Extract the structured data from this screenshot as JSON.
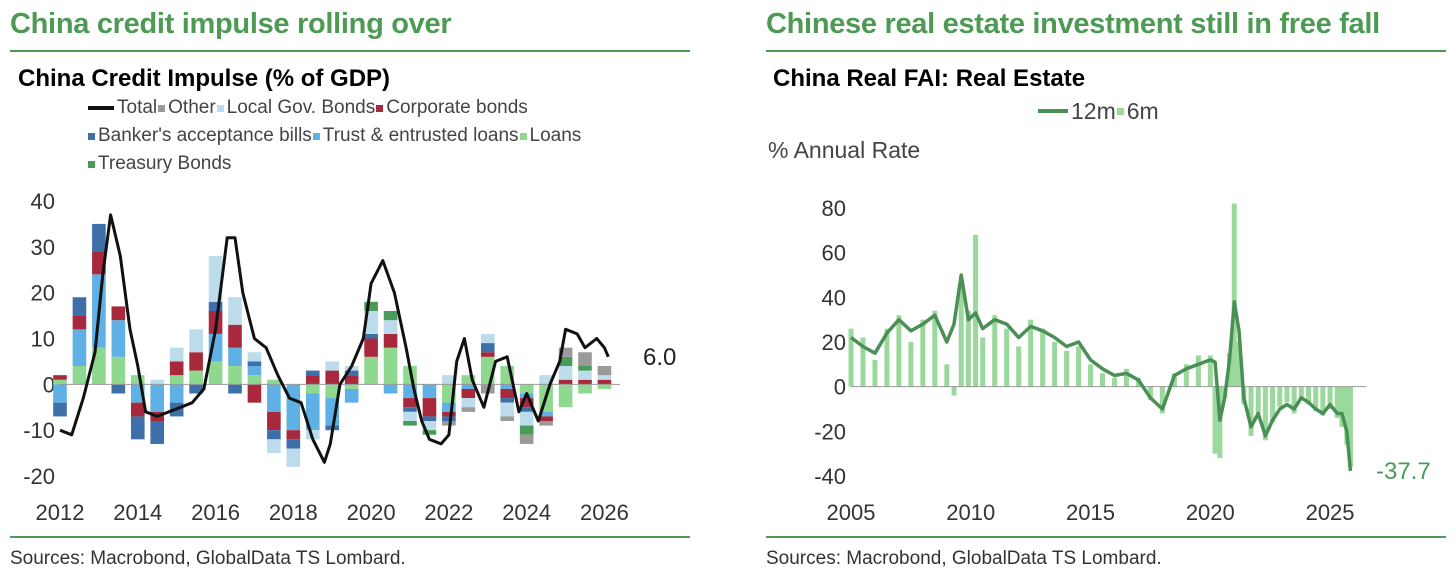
{
  "left": {
    "headline": "China credit impulse rolling over",
    "source": "Sources: Macrobond, GlobalData TS Lombard.",
    "legend": [
      {
        "label": "Total",
        "color": "#111111",
        "kind": "line"
      },
      {
        "label": "Other",
        "color": "#9a9a9a",
        "kind": "box"
      },
      {
        "label": "Local Gov. Bonds",
        "color": "#bcdcec",
        "kind": "box"
      },
      {
        "label": "Corporate bonds",
        "color": "#a8283c",
        "kind": "box"
      },
      {
        "label": "Banker's acceptance bills",
        "color": "#3d6fa8",
        "kind": "box"
      },
      {
        "label": "Trust & entrusted loans",
        "color": "#5eb0e5",
        "kind": "box"
      },
      {
        "label": "Loans",
        "color": "#8fd88f",
        "kind": "box"
      },
      {
        "label": "Treasury Bonds",
        "color": "#4a9a5a",
        "kind": "box"
      }
    ],
    "chart_data": {
      "type": "bar",
      "stacked": true,
      "title": "China Credit Impulse (% of GDP)",
      "xlabel": "",
      "ylabel": "",
      "xlim": [
        2012,
        2026.4
      ],
      "ylim": [
        -20,
        40
      ],
      "yticks": [
        40,
        30,
        20,
        10,
        0,
        -10,
        -20
      ],
      "ytick_labels": [
        "40",
        "30",
        "20",
        "10",
        "0",
        "-10",
        "-20"
      ],
      "xticks": [
        2012,
        2014,
        2016,
        2018,
        2020,
        2022,
        2024,
        2026
      ],
      "xtick_labels": [
        "2012",
        "2014",
        "2016",
        "2018",
        "2020",
        "2022",
        "2024",
        "2026"
      ],
      "last_value_label": "6.0",
      "series": [
        {
          "name": "Loans",
          "color": "#8fd88f",
          "x": [
            2012.0,
            2012.5,
            2013.0,
            2013.5,
            2014.0,
            2014.5,
            2015.0,
            2015.5,
            2016.0,
            2016.5,
            2017.0,
            2017.5,
            2018.0,
            2018.5,
            2019.0,
            2019.5,
            2020.0,
            2020.5,
            2021.0,
            2021.5,
            2022.0,
            2022.5,
            2023.0,
            2023.5,
            2024.0,
            2024.5,
            2025.0,
            2025.5,
            2026.0
          ],
          "values": [
            1,
            4,
            8,
            6,
            2,
            0,
            2,
            3,
            5,
            4,
            2,
            1,
            0,
            -2,
            -3,
            -1,
            6,
            8,
            4,
            0,
            -4,
            2,
            6,
            4,
            -2,
            -6,
            -5,
            -2,
            -1
          ]
        },
        {
          "name": "Trust & entrusted loans",
          "color": "#5eb0e5",
          "x": [
            2012.0,
            2012.5,
            2013.0,
            2013.5,
            2014.0,
            2014.5,
            2015.0,
            2015.5,
            2016.0,
            2016.5,
            2017.0,
            2017.5,
            2018.0,
            2018.5,
            2019.0,
            2019.5,
            2020.0,
            2020.5,
            2021.0,
            2021.5,
            2022.0,
            2022.5,
            2023.0,
            2023.5,
            2024.0,
            2024.5,
            2025.0,
            2025.5,
            2026.0
          ],
          "values": [
            -4,
            8,
            16,
            8,
            -4,
            -6,
            -4,
            0,
            6,
            4,
            2,
            -6,
            -10,
            -8,
            -6,
            -3,
            0,
            -2,
            -3,
            -3,
            -2,
            -1,
            0,
            -1,
            -1,
            -1,
            0,
            0,
            0
          ]
        },
        {
          "name": "Corporate bonds",
          "color": "#a8283c",
          "x": [
            2012.0,
            2012.5,
            2013.0,
            2013.5,
            2014.0,
            2014.5,
            2015.0,
            2015.5,
            2016.0,
            2016.5,
            2017.0,
            2017.5,
            2018.0,
            2018.5,
            2019.0,
            2019.5,
            2020.0,
            2020.5,
            2021.0,
            2021.5,
            2022.0,
            2022.5,
            2023.0,
            2023.5,
            2024.0,
            2024.5,
            2025.0,
            2025.5,
            2026.0
          ],
          "values": [
            1,
            3,
            5,
            3,
            -3,
            -2,
            3,
            4,
            5,
            5,
            -4,
            -4,
            -2,
            2,
            3,
            2,
            4,
            3,
            -2,
            -4,
            -1,
            -2,
            1,
            -2,
            -2,
            -1,
            1,
            1,
            1
          ]
        },
        {
          "name": "Banker's acceptance bills",
          "color": "#3d6fa8",
          "x": [
            2012.0,
            2012.5,
            2013.0,
            2013.5,
            2014.0,
            2014.5,
            2015.0,
            2015.5,
            2016.0,
            2016.5,
            2017.0,
            2017.5,
            2018.0,
            2018.5,
            2019.0,
            2019.5,
            2020.0,
            2020.5,
            2021.0,
            2021.5,
            2022.0,
            2022.5,
            2023.0,
            2023.5,
            2024.0,
            2024.5,
            2025.0,
            2025.5,
            2026.0
          ],
          "values": [
            -3,
            4,
            6,
            -2,
            -5,
            -5,
            -3,
            -2,
            2,
            -2,
            1,
            -2,
            -2,
            1,
            -1,
            1,
            1,
            0,
            -1,
            -1,
            -1,
            0,
            2,
            -1,
            -1,
            0,
            0,
            0,
            0
          ]
        },
        {
          "name": "Local Gov. Bonds",
          "color": "#bcdcec",
          "x": [
            2012.0,
            2012.5,
            2013.0,
            2013.5,
            2014.0,
            2014.5,
            2015.0,
            2015.5,
            2016.0,
            2016.5,
            2017.0,
            2017.5,
            2018.0,
            2018.5,
            2019.0,
            2019.5,
            2020.0,
            2020.5,
            2021.0,
            2021.5,
            2022.0,
            2022.5,
            2023.0,
            2023.5,
            2024.0,
            2024.5,
            2025.0,
            2025.5,
            2026.0
          ],
          "values": [
            0,
            0,
            0,
            0,
            0,
            1,
            3,
            5,
            10,
            6,
            2,
            -3,
            -4,
            -2,
            2,
            1,
            5,
            3,
            -2,
            -2,
            2,
            -2,
            2,
            -3,
            -3,
            2,
            3,
            2,
            1
          ]
        },
        {
          "name": "Treasury Bonds",
          "color": "#4a9a5a",
          "x": [
            2012.0,
            2012.5,
            2013.0,
            2013.5,
            2014.0,
            2014.5,
            2015.0,
            2015.5,
            2016.0,
            2016.5,
            2017.0,
            2017.5,
            2018.0,
            2018.5,
            2019.0,
            2019.5,
            2020.0,
            2020.5,
            2021.0,
            2021.5,
            2022.0,
            2022.5,
            2023.0,
            2023.5,
            2024.0,
            2024.5,
            2025.0,
            2025.5,
            2026.0
          ],
          "values": [
            0,
            0,
            0,
            0,
            0,
            0,
            0,
            0,
            0,
            0,
            0,
            0,
            0,
            0,
            0,
            0,
            2,
            2,
            -1,
            -1,
            0,
            0,
            0,
            0,
            -2,
            0,
            2,
            1,
            0
          ]
        },
        {
          "name": "Other",
          "color": "#9a9a9a",
          "x": [
            2012.0,
            2012.5,
            2013.0,
            2013.5,
            2014.0,
            2014.5,
            2015.0,
            2015.5,
            2016.0,
            2016.5,
            2017.0,
            2017.5,
            2018.0,
            2018.5,
            2019.0,
            2019.5,
            2020.0,
            2020.5,
            2021.0,
            2021.5,
            2022.0,
            2022.5,
            2023.0,
            2023.5,
            2024.0,
            2024.5,
            2025.0,
            2025.5,
            2026.0
          ],
          "values": [
            0,
            0,
            0,
            0,
            0,
            0,
            0,
            0,
            0,
            0,
            0,
            0,
            0,
            0,
            0,
            0,
            0,
            0,
            0,
            0,
            -1,
            -1,
            -2,
            -1,
            -2,
            -1,
            2,
            3,
            2
          ]
        },
        {
          "name": "Total",
          "color": "#111111",
          "kind": "line",
          "x": [
            2012.0,
            2012.3,
            2012.6,
            2012.9,
            2013.1,
            2013.3,
            2013.55,
            2013.8,
            2014.0,
            2014.2,
            2014.5,
            2014.8,
            2015.1,
            2015.4,
            2015.7,
            2016.0,
            2016.3,
            2016.5,
            2016.7,
            2017.0,
            2017.3,
            2017.6,
            2017.9,
            2018.2,
            2018.5,
            2018.8,
            2018.95,
            2019.2,
            2019.5,
            2019.8,
            2020.0,
            2020.3,
            2020.6,
            2020.9,
            2021.1,
            2021.3,
            2021.5,
            2021.8,
            2022.0,
            2022.2,
            2022.4,
            2022.6,
            2022.9,
            2023.2,
            2023.5,
            2023.8,
            2024.0,
            2024.3,
            2024.6,
            2024.85,
            2025.0,
            2025.3,
            2025.5,
            2025.8,
            2026.0,
            2026.1
          ],
          "values": [
            -10,
            -11,
            -3,
            7,
            24,
            37,
            28,
            12,
            4,
            -6,
            -7,
            -6,
            -5,
            -4,
            -1,
            12,
            32,
            32,
            20,
            10,
            8,
            2,
            -3,
            -4,
            -12,
            -17,
            -13,
            0,
            4,
            10,
            22,
            27,
            20,
            8,
            -1,
            -8,
            -12,
            -13,
            -11,
            5,
            10,
            1,
            -5,
            5,
            6,
            -6,
            -2,
            -8,
            0,
            5,
            12,
            11,
            8,
            10,
            8,
            6
          ]
        }
      ]
    }
  },
  "right": {
    "headline": "Chinese real estate investment still in free fall",
    "source": "Sources: Macrobond, GlobalData TS Lombard.",
    "unit_label": "% Annual Rate",
    "legend": [
      {
        "label": "12m",
        "color": "#4a8f55",
        "kind": "line"
      },
      {
        "label": "6m",
        "color": "#9bd89b",
        "kind": "box"
      }
    ],
    "chart_data": {
      "type": "line",
      "title": "China Real FAI: Real Estate",
      "xlabel": "",
      "ylabel": "% Annual Rate",
      "xlim": [
        2005,
        2026.5
      ],
      "ylim": [
        -40,
        80
      ],
      "yticks": [
        80,
        60,
        40,
        20,
        0,
        -20,
        -40
      ],
      "ytick_labels": [
        "80",
        "60",
        "40",
        "20",
        "0",
        "-20",
        "-40"
      ],
      "xticks": [
        2005,
        2010,
        2015,
        2020,
        2025
      ],
      "xtick_labels": [
        "2005",
        "2010",
        "2015",
        "2020",
        "2025"
      ],
      "last_value_label": "-37.7",
      "series": [
        {
          "name": "12m",
          "kind": "line",
          "color": "#4a8f55",
          "x": [
            2005.0,
            2005.5,
            2006.0,
            2006.5,
            2007.0,
            2007.5,
            2008.0,
            2008.5,
            2009.0,
            2009.3,
            2009.6,
            2009.9,
            2010.2,
            2010.5,
            2011.0,
            2011.5,
            2012.0,
            2012.5,
            2013.0,
            2013.5,
            2014.0,
            2014.5,
            2015.0,
            2015.5,
            2016.0,
            2016.5,
            2017.0,
            2017.5,
            2018.0,
            2018.5,
            2019.0,
            2019.5,
            2020.0,
            2020.2,
            2020.4,
            2020.6,
            2020.8,
            2021.0,
            2021.2,
            2021.4,
            2021.7,
            2022.0,
            2022.3,
            2022.6,
            2022.9,
            2023.2,
            2023.5,
            2023.8,
            2024.1,
            2024.4,
            2024.7,
            2025.0,
            2025.3,
            2025.5,
            2025.7,
            2025.85
          ],
          "values": [
            22,
            18,
            15,
            24,
            30,
            25,
            28,
            32,
            20,
            28,
            50,
            30,
            33,
            26,
            30,
            28,
            22,
            27,
            25,
            22,
            18,
            20,
            12,
            8,
            5,
            6,
            3,
            -5,
            -10,
            5,
            8,
            10,
            12,
            11,
            -15,
            -5,
            12,
            38,
            25,
            -5,
            -18,
            -12,
            -22,
            -15,
            -10,
            -8,
            -10,
            -5,
            -7,
            -10,
            -12,
            -8,
            -12,
            -12,
            -20,
            -37.7
          ]
        },
        {
          "name": "6m",
          "kind": "bar",
          "color": "#9bd89b",
          "x": [
            2005.0,
            2005.5,
            2006.0,
            2006.5,
            2007.0,
            2007.5,
            2008.0,
            2008.5,
            2009.0,
            2009.3,
            2009.6,
            2009.9,
            2010.2,
            2010.5,
            2011.0,
            2011.5,
            2012.0,
            2012.5,
            2013.0,
            2013.5,
            2014.0,
            2014.5,
            2015.0,
            2015.5,
            2016.0,
            2016.5,
            2017.0,
            2017.5,
            2018.0,
            2018.5,
            2019.0,
            2019.5,
            2020.0,
            2020.2,
            2020.4,
            2020.6,
            2020.8,
            2021.0,
            2021.2,
            2021.4,
            2021.7,
            2022.0,
            2022.3,
            2022.6,
            2022.9,
            2023.2,
            2023.5,
            2023.8,
            2024.1,
            2024.4,
            2024.7,
            2025.0,
            2025.3,
            2025.5,
            2025.7,
            2025.85
          ],
          "values": [
            26,
            22,
            12,
            26,
            32,
            20,
            30,
            34,
            10,
            -4,
            48,
            34,
            68,
            22,
            32,
            26,
            18,
            30,
            26,
            20,
            16,
            18,
            10,
            6,
            4,
            8,
            4,
            -6,
            -12,
            6,
            10,
            14,
            14,
            -30,
            -32,
            -5,
            15,
            82,
            20,
            -8,
            -22,
            -12,
            -24,
            -16,
            -9,
            -7,
            -12,
            -6,
            -8,
            -11,
            -13,
            -10,
            -14,
            -18,
            -26,
            -36
          ]
        }
      ]
    }
  }
}
